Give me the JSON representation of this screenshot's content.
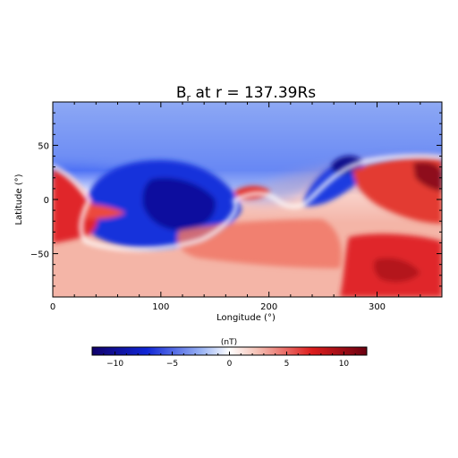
{
  "chart_data": [
    {
      "type": "heatmap",
      "title": {
        "quantity": "B",
        "subscript": "r",
        "rest": " at r = 137.39Rs"
      },
      "xlabel": "Longitude (°)",
      "ylabel": "Latitude (°)",
      "xlim": [
        0,
        360
      ],
      "ylim": [
        -90,
        90
      ],
      "x_ticks": [
        0,
        100,
        200,
        300
      ],
      "y_ticks": [
        -50,
        0,
        50
      ],
      "colormap": "blue-white-red diverging",
      "value_range": [
        -12,
        12
      ],
      "regions": [
        {
          "label": "positive southern band",
          "sign": "positive",
          "lon_range": [
            0,
            360
          ],
          "lat_range": [
            -90,
            -10
          ],
          "peak": 11
        },
        {
          "label": "negative northern band",
          "sign": "negative",
          "lon_range": [
            0,
            360
          ],
          "lat_range": [
            20,
            90
          ],
          "peak": -5
        },
        {
          "label": "strong negative lobe",
          "sign": "negative",
          "center": [
            130,
            5
          ],
          "peak": -11
        },
        {
          "label": "negative lobe east",
          "sign": "negative",
          "center": [
            262,
            18
          ],
          "peak": -9
        },
        {
          "label": "positive west lobe",
          "sign": "positive",
          "center": [
            15,
            -5
          ],
          "peak": 9
        },
        {
          "label": "positive east lobe",
          "sign": "positive",
          "center": [
            335,
            15
          ],
          "peak": 10
        },
        {
          "label": "positive small lobe",
          "sign": "positive",
          "center": [
            190,
            5
          ],
          "peak": 8
        }
      ]
    },
    {
      "type": "colorbar",
      "label": "(nT)",
      "range": [
        -12,
        12
      ],
      "ticks": [
        -10,
        -5,
        0,
        5,
        10
      ]
    }
  ],
  "colors": {
    "negative_max": "#10006a",
    "negative_strong": "#1026d6",
    "negative_mid": "#4a6ef5",
    "negative_light": "#9cb5f5",
    "zero": "#ffffff",
    "positive_light": "#f5c2b6",
    "positive_mid": "#f06a5a",
    "positive_strong": "#de1d1d",
    "positive_max": "#6a0010",
    "axis": "#000000"
  }
}
